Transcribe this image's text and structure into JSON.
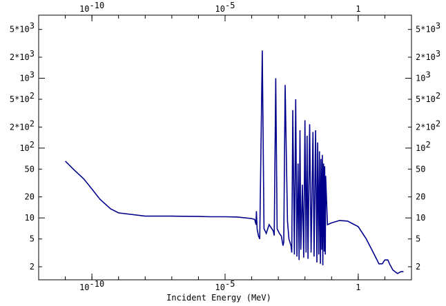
{
  "chart_data": {
    "type": "line",
    "title": "",
    "xlabel": "Incident Energy (MeV)",
    "ylabel": "",
    "x_scale": "log",
    "y_scale": "log",
    "xlim": [
      1e-12,
      100
    ],
    "ylim": [
      1.3,
      8000
    ],
    "grid": false,
    "x_ticks": [
      {
        "value": 1e-10,
        "base": "10",
        "exp": "-10"
      },
      {
        "value": 1e-05,
        "base": "10",
        "exp": "-5"
      },
      {
        "value": 1,
        "base": "1",
        "exp": ""
      }
    ],
    "y_ticks": [
      {
        "value": 5000,
        "base": "5*10",
        "exp": "3"
      },
      {
        "value": 2000,
        "base": "2*10",
        "exp": "3"
      },
      {
        "value": 1000,
        "base": "10",
        "exp": "3"
      },
      {
        "value": 500,
        "base": "5*10",
        "exp": "2"
      },
      {
        "value": 200,
        "base": "2*10",
        "exp": "2"
      },
      {
        "value": 100,
        "base": "10",
        "exp": "2"
      },
      {
        "value": 50,
        "base": "50",
        "exp": ""
      },
      {
        "value": 20,
        "base": "20",
        "exp": ""
      },
      {
        "value": 10,
        "base": "10",
        "exp": ""
      },
      {
        "value": 5,
        "base": "5",
        "exp": ""
      },
      {
        "value": 2,
        "base": "2",
        "exp": ""
      }
    ],
    "series": [
      {
        "color": "#00008b",
        "x": [
          1e-11,
          2e-11,
          5e-11,
          1e-10,
          2e-10,
          5e-10,
          1e-09,
          1e-08,
          1e-07,
          1e-06,
          3e-06,
          1e-05,
          3e-05,
          0.0001,
          0.00013,
          0.000145,
          0.00015,
          0.00016,
          0.00018,
          0.0002,
          0.00025,
          0.00029,
          0.00032,
          0.00035,
          0.00045,
          0.00065,
          0.0007,
          0.0008,
          0.0009,
          0.0011,
          0.0013,
          0.0015,
          0.0016,
          0.0018,
          0.0022,
          0.0025,
          0.003,
          0.0032,
          0.0035,
          0.004,
          0.0045,
          0.005,
          0.0055,
          0.006,
          0.0065,
          0.007,
          0.008,
          0.009,
          0.01,
          0.011,
          0.012,
          0.013,
          0.015,
          0.017,
          0.02,
          0.022,
          0.025,
          0.028,
          0.03,
          0.033,
          0.035,
          0.038,
          0.04,
          0.043,
          0.045,
          0.047,
          0.05,
          0.053,
          0.055,
          0.058,
          0.06,
          0.07,
          0.1,
          0.2,
          0.4,
          1,
          2,
          4,
          6,
          8,
          10,
          13,
          15,
          20,
          30,
          40,
          50
        ],
        "y": [
          65,
          50,
          36,
          26,
          18.5,
          13.5,
          11.8,
          10.6,
          10.6,
          10.5,
          10.4,
          10.4,
          10.3,
          9.8,
          9.5,
          8,
          12.5,
          7,
          5.5,
          5,
          2500,
          7,
          6.5,
          6,
          8,
          6.5,
          5.6,
          1000,
          7,
          6,
          5.5,
          4,
          4.5,
          800,
          9,
          5,
          4,
          3.2,
          350,
          3,
          500,
          2.8,
          60,
          2.5,
          180,
          3.5,
          30,
          2.7,
          250,
          3.2,
          150,
          2.6,
          220,
          3.2,
          170,
          2.8,
          180,
          2.3,
          120,
          3,
          90,
          2.2,
          70,
          3.5,
          80,
          2.1,
          60,
          3.3,
          55,
          3,
          40,
          8,
          8.5,
          9.2,
          9,
          7.5,
          5,
          3,
          2.2,
          2.2,
          2.5,
          2.5,
          2.2,
          1.8,
          1.6,
          1.7,
          1.7
        ]
      }
    ]
  }
}
